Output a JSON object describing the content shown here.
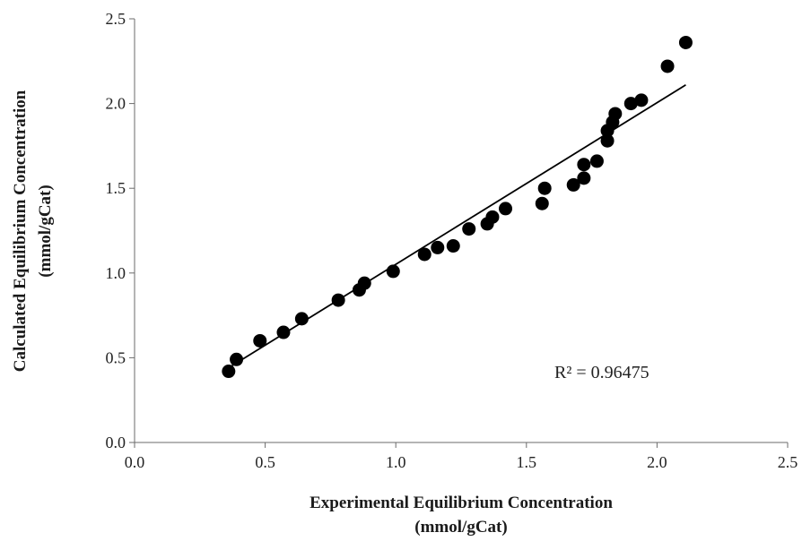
{
  "chart_data": {
    "type": "scatter",
    "xlabel_lines": [
      "Experimental Equilibrium Concentration",
      "(mmol/gCat)"
    ],
    "ylabel_lines": [
      "Calculated Equilibrium Concentration",
      "(mmol/gCat)"
    ],
    "xlim": [
      0,
      2.5
    ],
    "ylim": [
      0,
      2.5
    ],
    "xticks": [
      "0.0",
      "0.5",
      "1.0",
      "1.5",
      "2.0",
      "2.5"
    ],
    "yticks": [
      "0.0",
      "0.5",
      "1.0",
      "1.5",
      "2.0",
      "2.5"
    ],
    "grid": false,
    "marker_color": "#000000",
    "trendline": {
      "type": "linear",
      "from": [
        0.37,
        0.45
      ],
      "to": [
        2.11,
        2.11
      ],
      "color": "#000000"
    },
    "annotation": "R² = 0.96475",
    "points": [
      {
        "x": 0.36,
        "y": 0.42
      },
      {
        "x": 0.39,
        "y": 0.49
      },
      {
        "x": 0.48,
        "y": 0.6
      },
      {
        "x": 0.57,
        "y": 0.65
      },
      {
        "x": 0.64,
        "y": 0.73
      },
      {
        "x": 0.78,
        "y": 0.84
      },
      {
        "x": 0.86,
        "y": 0.9
      },
      {
        "x": 0.88,
        "y": 0.94
      },
      {
        "x": 0.99,
        "y": 1.01
      },
      {
        "x": 1.11,
        "y": 1.11
      },
      {
        "x": 1.16,
        "y": 1.15
      },
      {
        "x": 1.22,
        "y": 1.16
      },
      {
        "x": 1.28,
        "y": 1.26
      },
      {
        "x": 1.35,
        "y": 1.29
      },
      {
        "x": 1.37,
        "y": 1.33
      },
      {
        "x": 1.42,
        "y": 1.38
      },
      {
        "x": 1.56,
        "y": 1.41
      },
      {
        "x": 1.57,
        "y": 1.5
      },
      {
        "x": 1.68,
        "y": 1.52
      },
      {
        "x": 1.72,
        "y": 1.56
      },
      {
        "x": 1.72,
        "y": 1.64
      },
      {
        "x": 1.77,
        "y": 1.66
      },
      {
        "x": 1.81,
        "y": 1.78
      },
      {
        "x": 1.81,
        "y": 1.84
      },
      {
        "x": 1.83,
        "y": 1.89
      },
      {
        "x": 1.84,
        "y": 1.94
      },
      {
        "x": 1.9,
        "y": 2.0
      },
      {
        "x": 1.94,
        "y": 2.02
      },
      {
        "x": 2.04,
        "y": 2.22
      },
      {
        "x": 2.11,
        "y": 2.36
      }
    ]
  }
}
